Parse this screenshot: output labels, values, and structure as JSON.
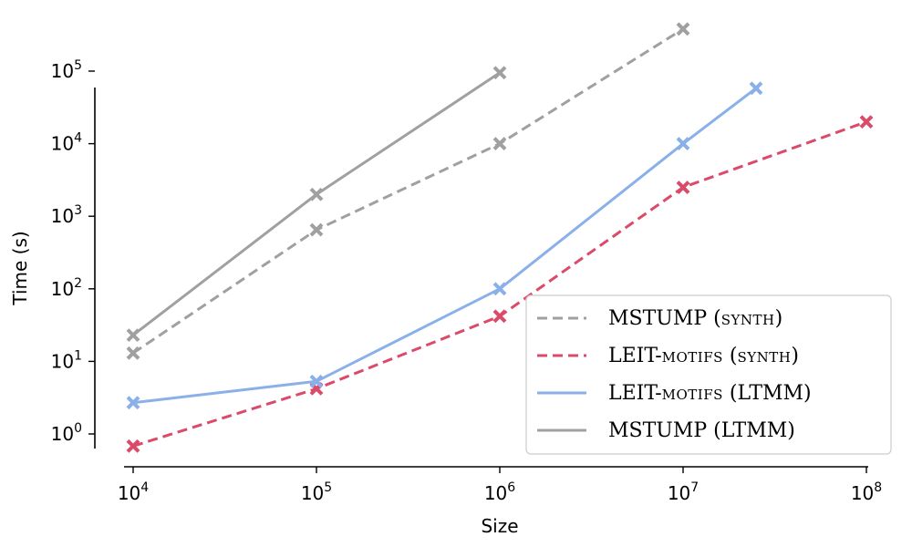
{
  "chart_data": {
    "type": "line",
    "title": "",
    "xlabel": "Size",
    "ylabel": "Time (s)",
    "x_scale": "log",
    "y_scale": "log",
    "xlim": [
      10000,
      100000000
    ],
    "ylim": [
      0.5,
      150000
    ],
    "x_ticks": [
      {
        "value": 10000,
        "base": "10",
        "exp": "4"
      },
      {
        "value": 100000,
        "base": "10",
        "exp": "5"
      },
      {
        "value": 1000000,
        "base": "10",
        "exp": "6"
      },
      {
        "value": 10000000,
        "base": "10",
        "exp": "7"
      },
      {
        "value": 100000000,
        "base": "10",
        "exp": "8"
      }
    ],
    "y_ticks": [
      {
        "value": 1,
        "base": "10",
        "exp": "0"
      },
      {
        "value": 10,
        "base": "10",
        "exp": "1"
      },
      {
        "value": 100,
        "base": "10",
        "exp": "2"
      },
      {
        "value": 1000,
        "base": "10",
        "exp": "3"
      },
      {
        "value": 10000,
        "base": "10",
        "exp": "4"
      },
      {
        "value": 100000,
        "base": "10",
        "exp": "5"
      }
    ],
    "grid": false,
    "legend_position": "bottom-right",
    "series": [
      {
        "key": "mstump-synth",
        "name": "MSTUMP (SYNTH)",
        "name_main": "MSTUMP (",
        "name_sc": "synth",
        "name_end": ")",
        "color": "#a0a0a0",
        "dash": "dashed",
        "marker": "x",
        "x": [
          10000,
          100000,
          1000000,
          10000000
        ],
        "y": [
          13,
          650,
          10000,
          380000
        ]
      },
      {
        "key": "leit-synth",
        "name": "LEIT-MOTIFS (SYNTH)",
        "name_main": "LEIT-",
        "name_sc": "motifs",
        "name_mid": " (",
        "name_sc2": "synth",
        "name_end": ")",
        "color": "#dc4a6a",
        "dash": "dashed",
        "marker": "x",
        "x": [
          10000,
          100000,
          1000000,
          10000000,
          100000000
        ],
        "y": [
          0.68,
          4.2,
          42,
          2500,
          20000
        ]
      },
      {
        "key": "leit-ltmm",
        "name": "LEIT-MOTIFS (LTMM)",
        "name_main": "LEIT-",
        "name_sc": "motifs",
        "name_end": " (LTMM)",
        "color": "#8ab0ea",
        "dash": "solid",
        "marker": "x",
        "x": [
          10000,
          100000,
          1000000,
          10000000,
          25000000
        ],
        "y": [
          2.7,
          5.3,
          100,
          10000,
          58000
        ]
      },
      {
        "key": "mstump-ltmm",
        "name": "MSTUMP (LTMM)",
        "name_main": "MSTUMP (LTMM)",
        "color": "#a0a0a0",
        "dash": "solid",
        "marker": "x",
        "x": [
          10000,
          100000,
          1000000
        ],
        "y": [
          23,
          2000,
          95000
        ]
      }
    ]
  },
  "colors": {
    "axis": "#000000",
    "legend_border": "#cccccc"
  }
}
